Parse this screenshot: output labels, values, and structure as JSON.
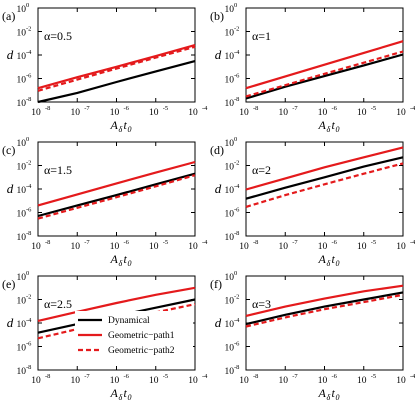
{
  "chart_data": [
    {
      "type": "line",
      "panel_label": "(a)",
      "annotation": "α=0.5",
      "x_scale": "log",
      "y_scale": "log",
      "xlim": [
        1e-08,
        0.0001
      ],
      "ylim": [
        1e-08,
        1
      ],
      "xlabel": "Aδt0",
      "ylabel": "d",
      "xticks": [
        "-8",
        "-7",
        "-6",
        "-5",
        "-4"
      ],
      "yticks": [
        "-8",
        "-6",
        "-4",
        "-2",
        "0"
      ],
      "x": [
        1e-08,
        1e-07,
        1e-06,
        1e-05,
        0.0001
      ],
      "series": [
        {
          "name": "Dynamical",
          "color": "#000000",
          "dash": "solid",
          "values": [
            1e-08,
            6e-08,
            5e-07,
            4e-06,
            3e-05
          ]
        },
        {
          "name": "Geometric−path1",
          "color": "#e41a1c",
          "dash": "solid",
          "values": [
            1.5e-07,
            1.3e-06,
            1e-05,
            8e-05,
            0.0007
          ]
        },
        {
          "name": "Geometric−path2",
          "color": "#e41a1c",
          "dash": "dashed",
          "values": [
            9e-08,
            8e-07,
            7e-06,
            6e-05,
            0.0005
          ]
        }
      ]
    },
    {
      "type": "line",
      "panel_label": "(b)",
      "annotation": "α=1",
      "x_scale": "log",
      "y_scale": "log",
      "xlim": [
        1e-08,
        0.0001
      ],
      "ylim": [
        1e-08,
        1
      ],
      "xlabel": "Aδt0",
      "ylabel": "d",
      "xticks": [
        "-8",
        "-7",
        "-6",
        "-5",
        "-4"
      ],
      "yticks": [
        "-8",
        "-6",
        "-4",
        "-2",
        "0"
      ],
      "x": [
        1e-08,
        1e-07,
        1e-06,
        1e-05,
        0.0001
      ],
      "series": [
        {
          "name": "Dynamical",
          "color": "#000000",
          "dash": "solid",
          "values": [
            2e-08,
            2e-07,
            1.6e-06,
            1.3e-05,
            0.00011
          ]
        },
        {
          "name": "Geometric−path1",
          "color": "#e41a1c",
          "dash": "solid",
          "values": [
            1.5e-07,
            1.5e-06,
            1.5e-05,
            0.00015,
            0.0015
          ]
        },
        {
          "name": "Geometric−path2",
          "color": "#e41a1c",
          "dash": "dashed",
          "values": [
            3e-08,
            2.7e-07,
            2.5e-06,
            2.2e-05,
            0.0002
          ]
        }
      ]
    },
    {
      "type": "line",
      "panel_label": "(c)",
      "annotation": "α=1.5",
      "x_scale": "log",
      "y_scale": "log",
      "xlim": [
        1e-08,
        0.0001
      ],
      "ylim": [
        1e-08,
        1
      ],
      "xlabel": "Aδt0",
      "ylabel": "d",
      "xticks": [
        "-8",
        "-7",
        "-6",
        "-5",
        "-4"
      ],
      "yticks": [
        "-8",
        "-6",
        "-4",
        "-2",
        "0"
      ],
      "x": [
        1e-08,
        1e-07,
        1e-06,
        1e-05,
        0.0001
      ],
      "series": [
        {
          "name": "Dynamical",
          "color": "#000000",
          "dash": "solid",
          "values": [
            5e-07,
            4e-06,
            3e-05,
            0.00025,
            0.002
          ]
        },
        {
          "name": "Geometric−path1",
          "color": "#e41a1c",
          "dash": "solid",
          "values": [
            4e-06,
            3.5e-05,
            0.0003,
            0.0025,
            0.02
          ]
        },
        {
          "name": "Geometric−path2",
          "color": "#e41a1c",
          "dash": "dashed",
          "values": [
            3e-07,
            2.5e-06,
            2e-05,
            0.00017,
            0.0015
          ]
        }
      ]
    },
    {
      "type": "line",
      "panel_label": "(d)",
      "annotation": "α=2",
      "x_scale": "log",
      "y_scale": "log",
      "xlim": [
        1e-08,
        0.0001
      ],
      "ylim": [
        1e-08,
        1
      ],
      "xlabel": "Aδt0",
      "ylabel": "d",
      "xticks": [
        "-8",
        "-7",
        "-6",
        "-5",
        "-4"
      ],
      "yticks": [
        "-8",
        "-6",
        "-4",
        "-2",
        "0"
      ],
      "x": [
        1e-08,
        1e-07,
        1e-06,
        1e-05,
        0.0001
      ],
      "series": [
        {
          "name": "Dynamical",
          "color": "#000000",
          "dash": "solid",
          "values": [
            1.5e-05,
            0.00013,
            0.001,
            0.008,
            0.05
          ]
        },
        {
          "name": "Geometric−path1",
          "color": "#e41a1c",
          "dash": "solid",
          "values": [
            9e-05,
            0.0008,
            0.007,
            0.05,
            0.35
          ]
        },
        {
          "name": "Geometric−path2",
          "color": "#e41a1c",
          "dash": "dashed",
          "values": [
            3e-06,
            3e-05,
            0.00025,
            0.002,
            0.015
          ]
        }
      ]
    },
    {
      "type": "line",
      "panel_label": "(e)",
      "annotation": "α=2.5",
      "x_scale": "log",
      "y_scale": "log",
      "xlim": [
        1e-08,
        0.0001
      ],
      "ylim": [
        1e-08,
        1
      ],
      "xlabel": "Aδt0",
      "ylabel": "d",
      "xticks": [
        "-8",
        "-7",
        "-6",
        "-5",
        "-4"
      ],
      "yticks": [
        "-8",
        "-6",
        "-4",
        "-2",
        "0"
      ],
      "x": [
        1e-08,
        1e-07,
        1e-06,
        1e-05,
        0.0001
      ],
      "series": [
        {
          "name": "Dynamical",
          "color": "#000000",
          "dash": "solid",
          "values": [
            1.5e-05,
            8e-05,
            0.0004,
            0.002,
            0.01
          ]
        },
        {
          "name": "Geometric−path1",
          "color": "#e41a1c",
          "dash": "solid",
          "values": [
            0.00015,
            0.0009,
            0.005,
            0.025,
            0.1
          ]
        },
        {
          "name": "Geometric−path2",
          "color": "#e41a1c",
          "dash": "dashed",
          "values": [
            5e-06,
            3e-05,
            0.00015,
            0.0008,
            0.004
          ]
        }
      ]
    },
    {
      "type": "line",
      "panel_label": "(f)",
      "annotation": "α=3",
      "x_scale": "log",
      "y_scale": "log",
      "xlim": [
        1e-08,
        0.0001
      ],
      "ylim": [
        1e-08,
        1
      ],
      "xlabel": "Aδt0",
      "ylabel": "d",
      "xticks": [
        "-8",
        "-7",
        "-6",
        "-5",
        "-4"
      ],
      "yticks": [
        "-8",
        "-6",
        "-4",
        "-2",
        "0"
      ],
      "x": [
        1e-08,
        1e-07,
        1e-06,
        1e-05,
        0.0001
      ],
      "series": [
        {
          "name": "Dynamical",
          "color": "#000000",
          "dash": "solid",
          "values": [
            8e-05,
            0.0005,
            0.0025,
            0.01,
            0.04
          ]
        },
        {
          "name": "Geometric−path1",
          "color": "#e41a1c",
          "dash": "solid",
          "values": [
            0.0004,
            0.0025,
            0.012,
            0.05,
            0.15
          ]
        },
        {
          "name": "Geometric−path2",
          "color": "#e41a1c",
          "dash": "dashed",
          "values": [
            5e-05,
            0.0003,
            0.0015,
            0.006,
            0.025
          ]
        }
      ]
    }
  ],
  "legend": {
    "placement": "bottom-right of panel (e)",
    "items": [
      "Dynamical",
      "Geometric−path1",
      "Geometric−path2"
    ]
  }
}
